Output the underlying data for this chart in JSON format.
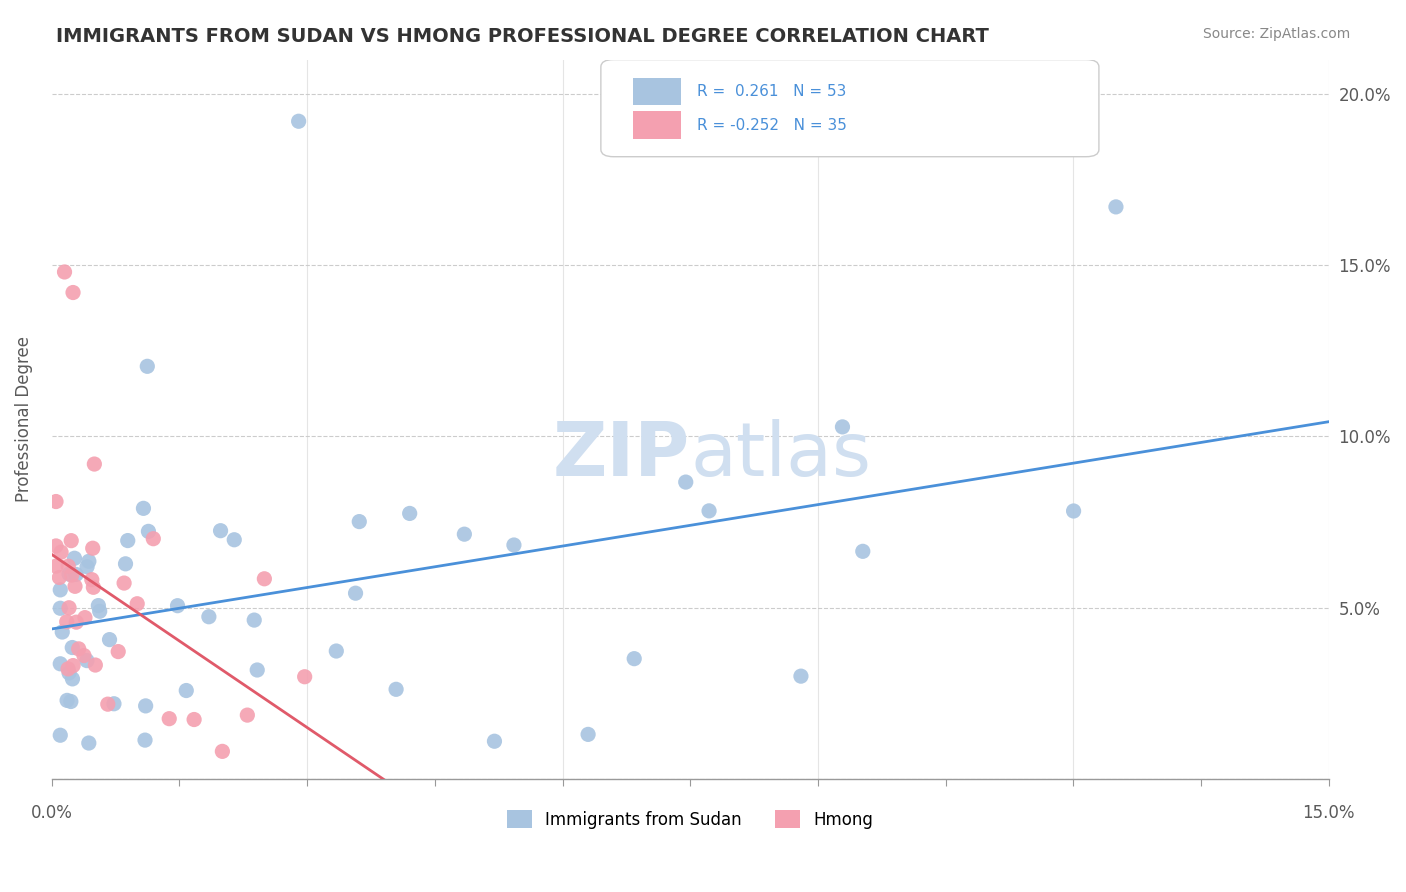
{
  "title": "IMMIGRANTS FROM SUDAN VS HMONG PROFESSIONAL DEGREE CORRELATION CHART",
  "source": "Source: ZipAtlas.com",
  "ylabel": "Professional Degree",
  "xlim": [
    0.0,
    0.15
  ],
  "ylim": [
    0.0,
    0.21
  ],
  "yticks": [
    0.0,
    0.05,
    0.1,
    0.15,
    0.2
  ],
  "ytick_labels": [
    "",
    "5.0%",
    "10.0%",
    "15.0%",
    "20.0%"
  ],
  "legend_r1": "R =  0.261",
  "legend_n1": "N = 53",
  "legend_r2": "R = -0.252",
  "legend_n2": "N = 35",
  "sudan_color": "#a8c4e0",
  "hmong_color": "#f4a0b0",
  "trend_sudan_color": "#4a90d9",
  "trend_hmong_color": "#e05a6a",
  "watermark_zip": "ZIP",
  "watermark_atlas": "atlas",
  "watermark_color": "#d0dff0",
  "grid_color": "#cccccc",
  "label_color": "#5a5a5a",
  "title_color": "#333333"
}
